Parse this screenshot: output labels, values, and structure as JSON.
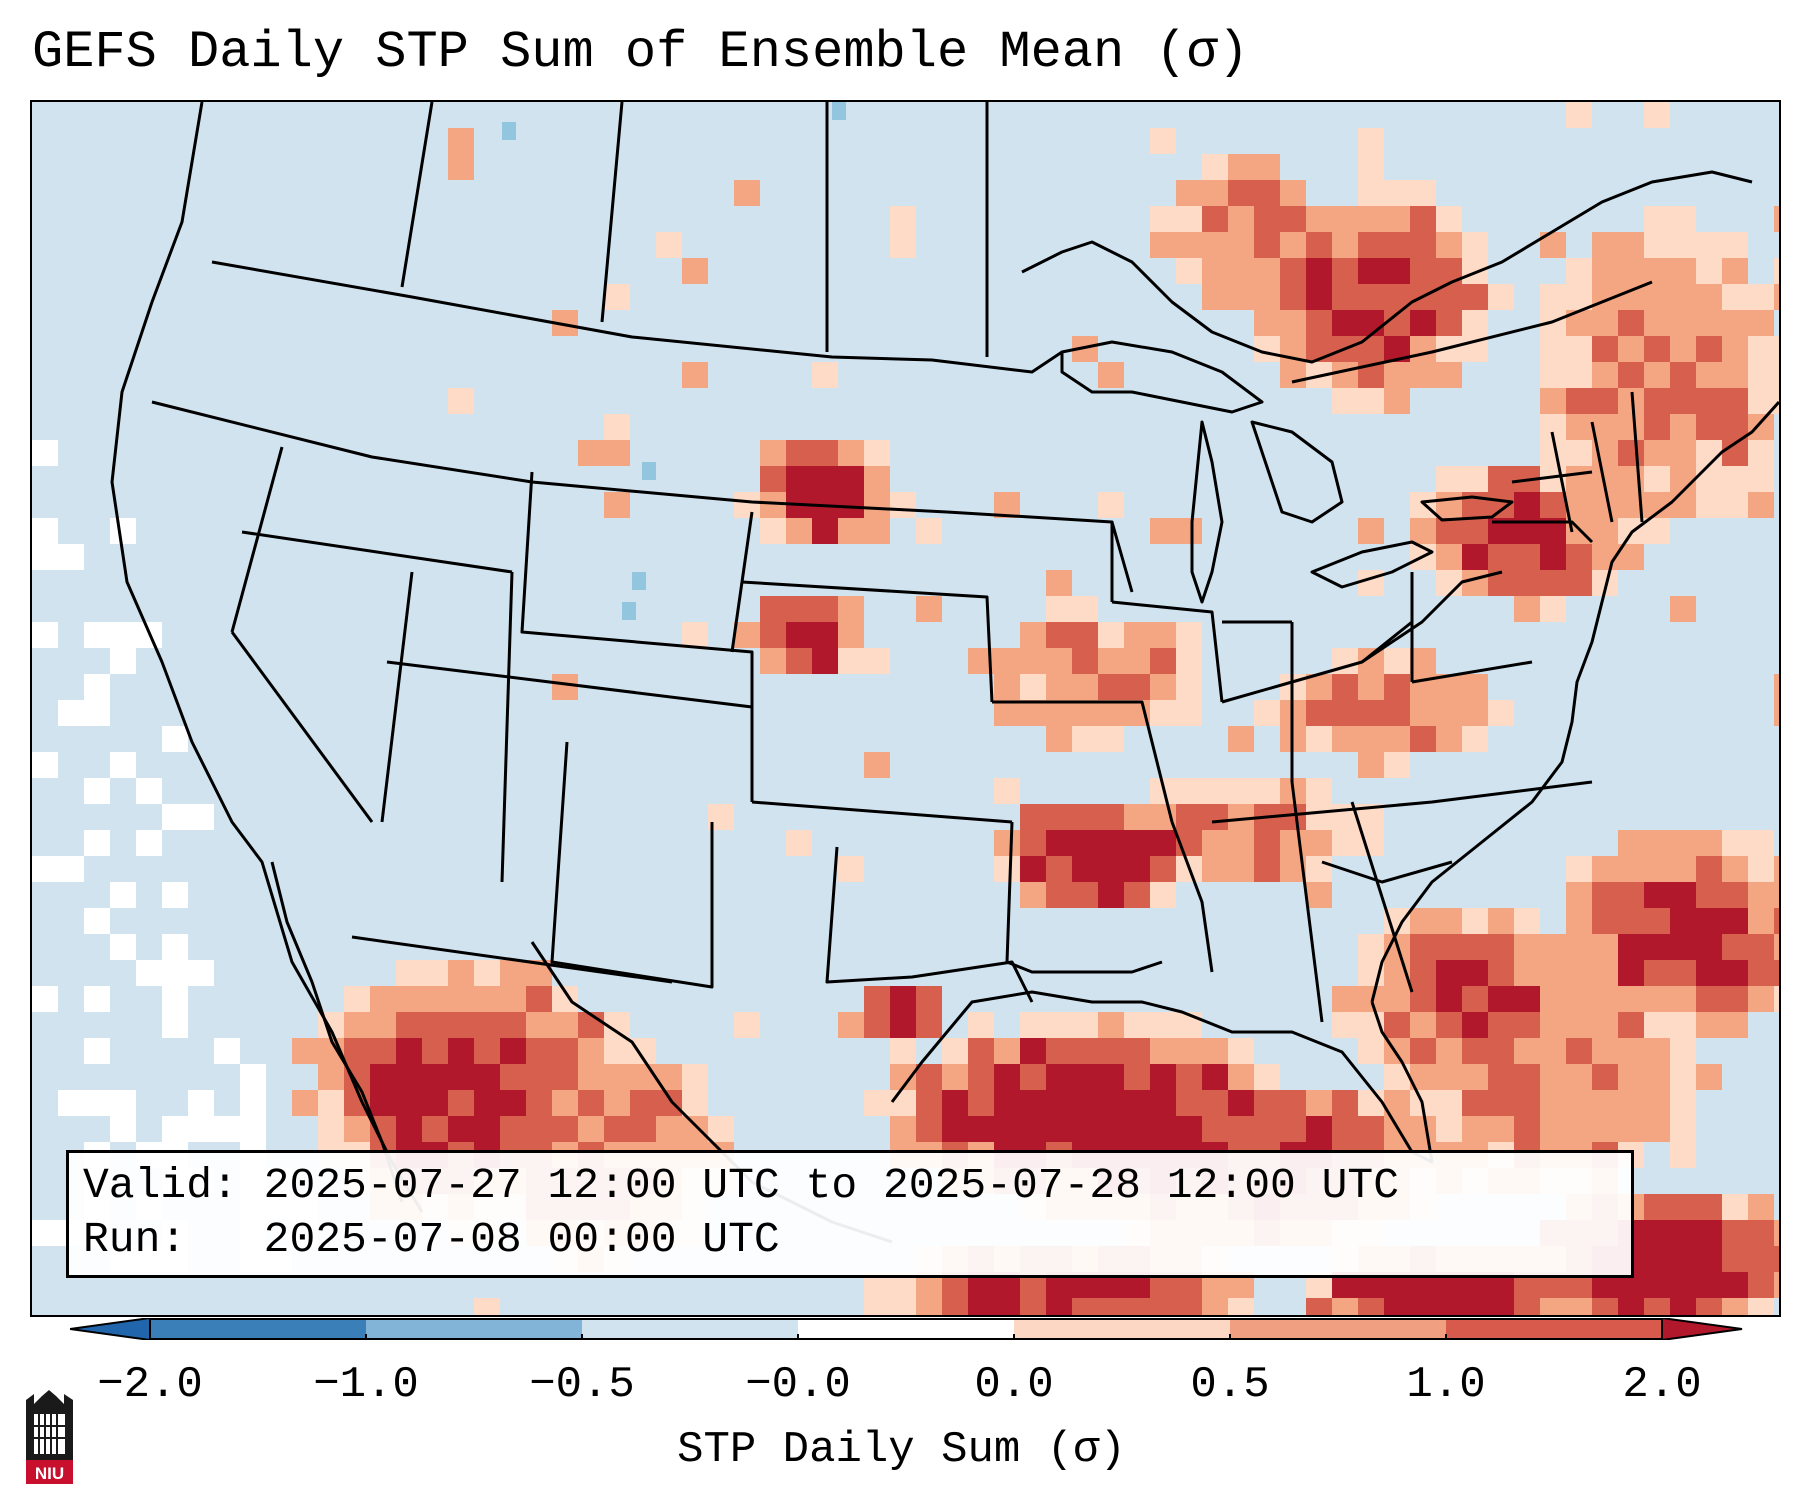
{
  "title": "GEFS Daily STP Sum of Ensemble Mean (σ)",
  "info": {
    "valid_label": "Valid:",
    "valid_value": "2025-07-27 12:00 UTC to 2025-07-28 12:00 UTC",
    "run_label": "Run:",
    "run_value": "2025-07-08 00:00 UTC"
  },
  "colorbar": {
    "label": "STP Daily Sum (σ)",
    "ticks": [
      "−2.0",
      "−1.0",
      "−0.5",
      "−0.0",
      "0.0",
      "0.5",
      "1.0",
      "2.0"
    ],
    "colors": [
      "#3a7fb8",
      "#82b4d8",
      "#d0e3ef",
      "#ffffff",
      "#fbd7c4",
      "#f0a080",
      "#d75a4d",
      "#b2182b"
    ],
    "extend_low_color": "#2166ac",
    "extend_high_color": "#b2182b"
  },
  "map_colors": {
    "ocean_background": "#d0e3ef",
    "negative_cells": "#92c5de",
    "zero_cells": "#ffffff",
    "light_positive": "#fddbc7",
    "medium_positive": "#f4a582",
    "strong_positive": "#d6604d",
    "extreme_positive": "#b2182b"
  },
  "logo": {
    "text": "NIU",
    "icon": "niu-logo-icon"
  }
}
